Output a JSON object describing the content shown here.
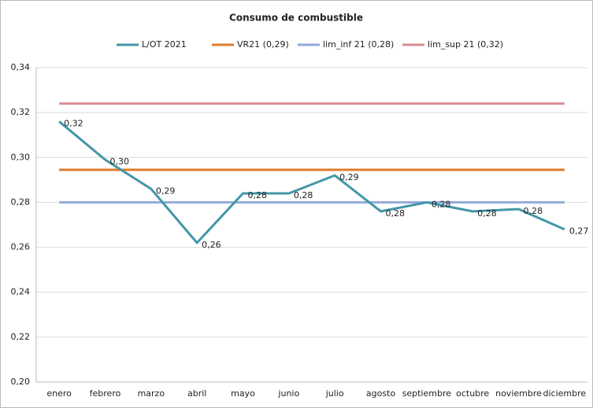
{
  "chart_data": {
    "type": "line",
    "title": "Consumo de combustible",
    "categories": [
      "enero",
      "febrero",
      "marzo",
      "abril",
      "mayo",
      "junio",
      "julio",
      "agosto",
      "septiembre",
      "octubre",
      "noviembre",
      "diciembre"
    ],
    "series": [
      {
        "name": "L/OT 2021",
        "color": "#4396a8",
        "values": [
          0.316,
          0.299,
          0.286,
          0.262,
          0.284,
          0.284,
          0.292,
          0.276,
          0.28,
          0.276,
          0.277,
          0.268
        ],
        "value_labels": [
          "0,32",
          "0,30",
          "0,29",
          "0,26",
          "0,28",
          "0,28",
          "0,29",
          "0,28",
          "0,28",
          "0,28",
          "0,28",
          "0,27"
        ]
      },
      {
        "name": "VR21 (0,29)",
        "color": "#e07b2a",
        "values": [
          0.2945,
          0.2945,
          0.2945,
          0.2945,
          0.2945,
          0.2945,
          0.2945,
          0.2945,
          0.2945,
          0.2945,
          0.2945,
          0.2945
        ]
      },
      {
        "name": "lim_inf 21 (0,28)",
        "color": "#93a9d9",
        "values": [
          0.28,
          0.28,
          0.28,
          0.28,
          0.28,
          0.28,
          0.28,
          0.28,
          0.28,
          0.28,
          0.28,
          0.28
        ]
      },
      {
        "name": "lim_sup 21 (0,32)",
        "color": "#d98c92",
        "values": [
          0.324,
          0.324,
          0.324,
          0.324,
          0.324,
          0.324,
          0.324,
          0.324,
          0.324,
          0.324,
          0.324,
          0.324
        ]
      }
    ],
    "ylim": [
      0.2,
      0.34
    ],
    "yticks": [
      {
        "value": 0.2,
        "label": "0,20"
      },
      {
        "value": 0.22,
        "label": "0,22"
      },
      {
        "value": 0.24,
        "label": "0,24"
      },
      {
        "value": 0.26,
        "label": "0,26"
      },
      {
        "value": 0.28,
        "label": "0,28"
      },
      {
        "value": 0.3,
        "label": "0,30"
      },
      {
        "value": 0.32,
        "label": "0,32"
      },
      {
        "value": 0.34,
        "label": "0,34"
      }
    ],
    "legend": "top"
  }
}
